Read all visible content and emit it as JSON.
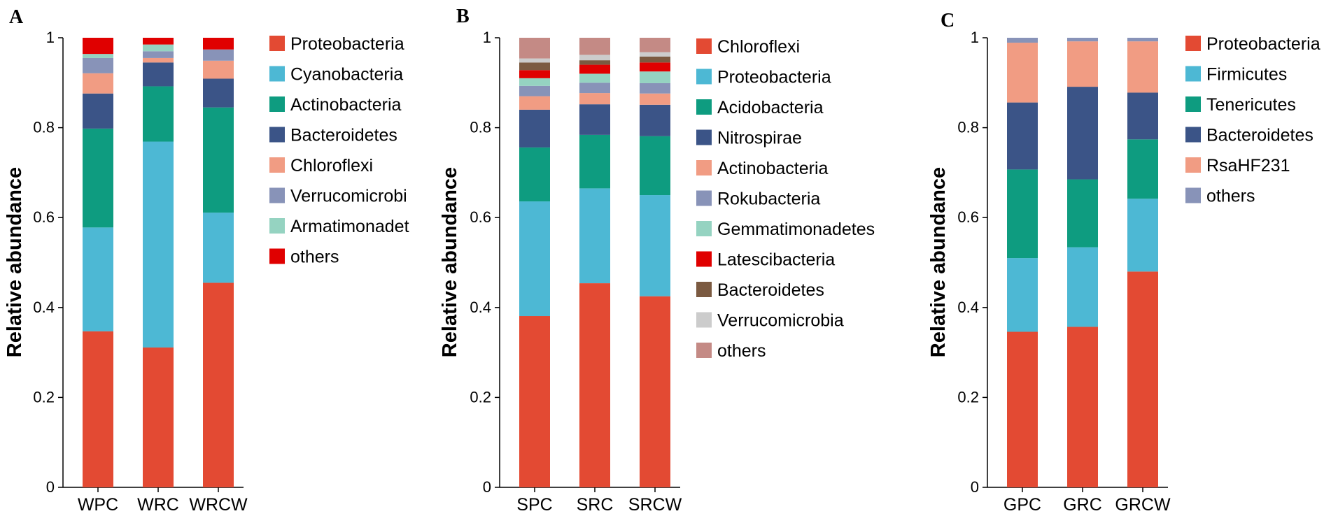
{
  "chart_data": [
    {
      "type": "bar",
      "stacked": true,
      "panel_label": "A",
      "ylabel": "Relative abundance",
      "ylim": [
        0,
        1
      ],
      "yticks": [
        "0",
        "0.2",
        "0.4",
        "0.6",
        "0.8",
        "1"
      ],
      "categories": [
        "WPC",
        "WRC",
        "WRCW"
      ],
      "series": [
        {
          "name": "Proteobacteria",
          "color": "#e34a33",
          "values": [
            0.347,
            0.311,
            0.455
          ]
        },
        {
          "name": "Cyanobacteria",
          "color": "#4db8d4",
          "values": [
            0.231,
            0.458,
            0.156
          ]
        },
        {
          "name": "Actinobacteria",
          "color": "#0e9c80",
          "values": [
            0.22,
            0.123,
            0.234
          ]
        },
        {
          "name": "Bacteroidetes",
          "color": "#3b5487",
          "values": [
            0.078,
            0.053,
            0.064
          ]
        },
        {
          "name": "Chloroflexi",
          "color": "#f19c83",
          "values": [
            0.045,
            0.01,
            0.04
          ]
        },
        {
          "name": "Verrucomicrobi",
          "color": "#8893b8",
          "values": [
            0.034,
            0.015,
            0.025
          ]
        },
        {
          "name": "Armatimonadet",
          "color": "#95d3c1",
          "values": [
            0.009,
            0.015,
            0.0
          ]
        },
        {
          "name": "others",
          "color": "#e00000",
          "values": [
            0.036,
            0.015,
            0.026
          ]
        }
      ]
    },
    {
      "type": "bar",
      "stacked": true,
      "panel_label": "B",
      "ylabel": "Relative abundance",
      "ylim": [
        0,
        1
      ],
      "yticks": [
        "0",
        "0.2",
        "0.4",
        "0.6",
        "0.8",
        "1"
      ],
      "categories": [
        "SPC",
        "SRC",
        "SRCW"
      ],
      "series": [
        {
          "name": "Chloroflexi",
          "color": "#e34a33",
          "values": [
            0.381,
            0.454,
            0.425
          ]
        },
        {
          "name": "Proteobacteria",
          "color": "#4db8d4",
          "values": [
            0.255,
            0.211,
            0.225
          ]
        },
        {
          "name": "Acidobacteria",
          "color": "#0e9c80",
          "values": [
            0.12,
            0.119,
            0.131
          ]
        },
        {
          "name": "Nitrospirae",
          "color": "#3b5487",
          "values": [
            0.084,
            0.068,
            0.07
          ]
        },
        {
          "name": "Actinobacteria",
          "color": "#f19c83",
          "values": [
            0.03,
            0.025,
            0.025
          ]
        },
        {
          "name": "Rokubacteria",
          "color": "#8893b8",
          "values": [
            0.023,
            0.023,
            0.023
          ]
        },
        {
          "name": "Gemmatimonadetes",
          "color": "#95d3c1",
          "values": [
            0.017,
            0.02,
            0.026
          ]
        },
        {
          "name": "Latescibacteria",
          "color": "#e00000",
          "values": [
            0.018,
            0.02,
            0.02
          ]
        },
        {
          "name": "Bacteroidetes",
          "color": "#7b5a41",
          "values": [
            0.017,
            0.01,
            0.013
          ]
        },
        {
          "name": "Verrucomicrobia",
          "color": "#cccccc",
          "values": [
            0.009,
            0.012,
            0.01
          ]
        },
        {
          "name": "others",
          "color": "#c48a85",
          "values": [
            0.046,
            0.038,
            0.032
          ]
        }
      ]
    },
    {
      "type": "bar",
      "stacked": true,
      "panel_label": "C",
      "ylabel": "Relative abundance",
      "ylim": [
        0,
        1
      ],
      "yticks": [
        "0",
        "0.2",
        "0.4",
        "0.6",
        "0.8",
        "1"
      ],
      "categories": [
        "GPC",
        "GRC",
        "GRCW"
      ],
      "series": [
        {
          "name": "Proteobacteria",
          "color": "#e34a33",
          "values": [
            0.346,
            0.357,
            0.48
          ]
        },
        {
          "name": "Firmicutes",
          "color": "#4db8d4",
          "values": [
            0.164,
            0.177,
            0.162
          ]
        },
        {
          "name": "Tenericutes",
          "color": "#0e9c80",
          "values": [
            0.197,
            0.151,
            0.132
          ]
        },
        {
          "name": "Bacteroidetes",
          "color": "#3b5487",
          "values": [
            0.149,
            0.206,
            0.104
          ]
        },
        {
          "name": "RsaHF231",
          "color": "#f19c83",
          "values": [
            0.133,
            0.101,
            0.114
          ]
        },
        {
          "name": "others",
          "color": "#8893b8",
          "values": [
            0.011,
            0.008,
            0.008
          ]
        }
      ]
    }
  ]
}
